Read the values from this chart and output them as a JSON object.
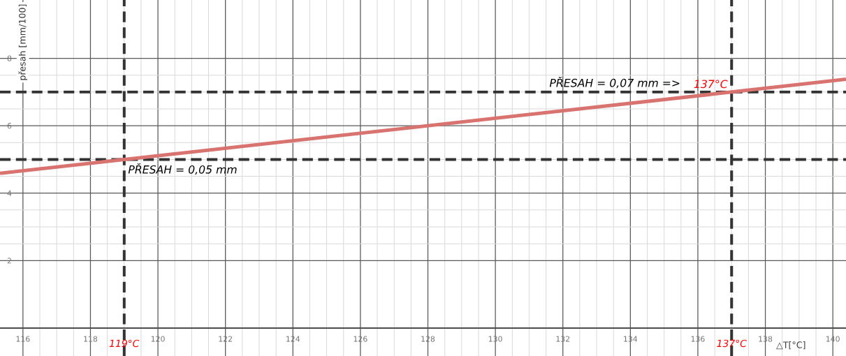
{
  "chart_data": {
    "type": "line",
    "xlabel": "△T[°C]",
    "ylabel": "přesah [mm/100]",
    "x": [
      115.32,
      119,
      137,
      140.39
    ],
    "series": [
      {
        "color": "#d9736f",
        "values": [
          4.59,
          5,
          7,
          7.38
        ]
      }
    ],
    "xlim": [
      115.32,
      140.39
    ],
    "ylim": [
      -0.83,
      9.73
    ],
    "xticks": [
      116,
      118,
      120,
      122,
      124,
      126,
      128,
      130,
      132,
      134,
      136,
      138,
      140
    ],
    "yticks": [
      2,
      4,
      6,
      8
    ],
    "grid": true,
    "marker": "none",
    "line_style": "solid",
    "ref_lines": [
      {
        "axis": "x",
        "value": 119,
        "label": "119°C",
        "color": "#333333",
        "line_style": "dashed"
      },
      {
        "axis": "x",
        "value": 137,
        "label": "137°C",
        "color": "#333333",
        "line_style": "dashed"
      },
      {
        "axis": "y",
        "value": 5,
        "color": "#333333",
        "line_style": "dashed"
      },
      {
        "axis": "y",
        "value": 7,
        "color": "#333333",
        "line_style": "dashed"
      }
    ],
    "annotations": [
      {
        "text": "PŘESAH = 0,05 mm",
        "x": 119,
        "y": 5
      },
      {
        "text": "PŘESAH = 0,07 mm  =>",
        "x": 135.6,
        "y": 7
      },
      {
        "text": "137°C",
        "x": 137,
        "y": 7
      }
    ]
  }
}
